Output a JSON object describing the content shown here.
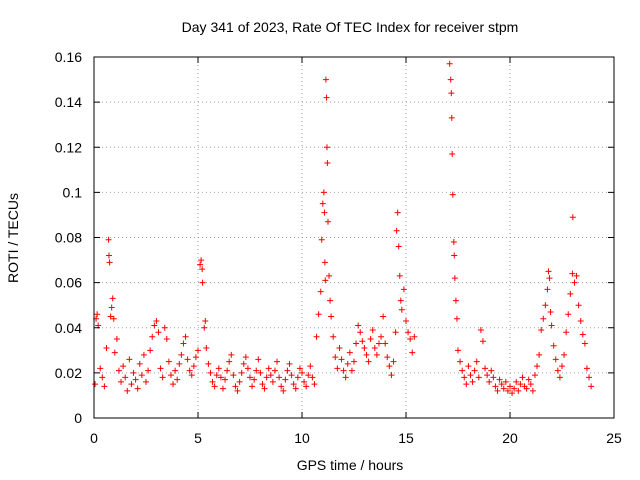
{
  "chart_data": {
    "type": "scatter",
    "title": "Day 341 of 2023, Rate Of TEC Index for receiver stpm",
    "xlabel": "GPS time / hours",
    "ylabel": "ROTI / TECUs",
    "xlim": [
      0,
      25
    ],
    "ylim": [
      0,
      0.16
    ],
    "x_ticks": [
      0,
      5,
      10,
      15,
      20,
      25
    ],
    "x_tick_labels": [
      "0",
      "5",
      "10",
      "15",
      "20",
      "25"
    ],
    "y_ticks": [
      0,
      0.02,
      0.04,
      0.06,
      0.08,
      0.1,
      0.12,
      0.14,
      0.16
    ],
    "y_tick_labels": [
      "0",
      "0.02",
      "0.04",
      "0.06",
      "0.08",
      "0.1",
      "0.12",
      "0.14",
      "0.16"
    ],
    "grid": true,
    "marker": "+",
    "color": "#ff0000",
    "series": [
      {
        "name": "ROTI",
        "points": [
          [
            0.05,
            0.015
          ],
          [
            0.1,
            0.044
          ],
          [
            0.15,
            0.046
          ],
          [
            0.2,
            0.041
          ],
          [
            0.3,
            0.022
          ],
          [
            0.4,
            0.018
          ],
          [
            0.5,
            0.014
          ],
          [
            0.6,
            0.031
          ],
          [
            0.7,
            0.079
          ],
          [
            0.72,
            0.072
          ],
          [
            0.75,
            0.069
          ],
          [
            0.8,
            0.045
          ],
          [
            0.85,
            0.049
          ],
          [
            0.9,
            0.053
          ],
          [
            0.95,
            0.044
          ],
          [
            1.0,
            0.029
          ],
          [
            1.1,
            0.035
          ],
          [
            1.2,
            0.021
          ],
          [
            1.3,
            0.016
          ],
          [
            1.4,
            0.023
          ],
          [
            1.5,
            0.018
          ],
          [
            1.6,
            0.012
          ],
          [
            1.7,
            0.026
          ],
          [
            1.8,
            0.015
          ],
          [
            1.9,
            0.02
          ],
          [
            2.0,
            0.017
          ],
          [
            2.1,
            0.013
          ],
          [
            2.2,
            0.024
          ],
          [
            2.3,
            0.019
          ],
          [
            2.4,
            0.028
          ],
          [
            2.5,
            0.016
          ],
          [
            2.6,
            0.021
          ],
          [
            2.7,
            0.03
          ],
          [
            2.8,
            0.036
          ],
          [
            2.9,
            0.041
          ],
          [
            3.0,
            0.043
          ],
          [
            3.1,
            0.038
          ],
          [
            3.2,
            0.022
          ],
          [
            3.3,
            0.018
          ],
          [
            3.4,
            0.04
          ],
          [
            3.5,
            0.035
          ],
          [
            3.6,
            0.025
          ],
          [
            3.7,
            0.019
          ],
          [
            3.8,
            0.015
          ],
          [
            3.9,
            0.021
          ],
          [
            4.0,
            0.017
          ],
          [
            4.1,
            0.024
          ],
          [
            4.2,
            0.028
          ],
          [
            4.3,
            0.033
          ],
          [
            4.4,
            0.036
          ],
          [
            4.5,
            0.026
          ],
          [
            4.6,
            0.021
          ],
          [
            4.7,
            0.019
          ],
          [
            4.8,
            0.023
          ],
          [
            4.9,
            0.027
          ],
          [
            5.0,
            0.03
          ],
          [
            5.1,
            0.068
          ],
          [
            5.15,
            0.07
          ],
          [
            5.2,
            0.066
          ],
          [
            5.22,
            0.06
          ],
          [
            5.3,
            0.04
          ],
          [
            5.35,
            0.043
          ],
          [
            5.4,
            0.031
          ],
          [
            5.5,
            0.024
          ],
          [
            5.6,
            0.02
          ],
          [
            5.7,
            0.016
          ],
          [
            5.8,
            0.014
          ],
          [
            5.9,
            0.019
          ],
          [
            6.0,
            0.022
          ],
          [
            6.1,
            0.018
          ],
          [
            6.2,
            0.013
          ],
          [
            6.3,
            0.017
          ],
          [
            6.4,
            0.021
          ],
          [
            6.5,
            0.025
          ],
          [
            6.6,
            0.028
          ],
          [
            6.7,
            0.019
          ],
          [
            6.8,
            0.014
          ],
          [
            6.9,
            0.012
          ],
          [
            7.0,
            0.016
          ],
          [
            7.1,
            0.02
          ],
          [
            7.2,
            0.024
          ],
          [
            7.3,
            0.027
          ],
          [
            7.4,
            0.022
          ],
          [
            7.5,
            0.018
          ],
          [
            7.6,
            0.014
          ],
          [
            7.7,
            0.017
          ],
          [
            7.8,
            0.021
          ],
          [
            7.9,
            0.026
          ],
          [
            8.0,
            0.02
          ],
          [
            8.1,
            0.015
          ],
          [
            8.2,
            0.013
          ],
          [
            8.3,
            0.018
          ],
          [
            8.4,
            0.022
          ],
          [
            8.5,
            0.019
          ],
          [
            8.6,
            0.016
          ],
          [
            8.7,
            0.021
          ],
          [
            8.8,
            0.025
          ],
          [
            8.9,
            0.018
          ],
          [
            9.0,
            0.014
          ],
          [
            9.1,
            0.012
          ],
          [
            9.2,
            0.017
          ],
          [
            9.3,
            0.021
          ],
          [
            9.4,
            0.024
          ],
          [
            9.5,
            0.019
          ],
          [
            9.6,
            0.015
          ],
          [
            9.7,
            0.013
          ],
          [
            9.8,
            0.018
          ],
          [
            9.9,
            0.022
          ],
          [
            10.0,
            0.02
          ],
          [
            10.1,
            0.016
          ],
          [
            10.2,
            0.014
          ],
          [
            10.3,
            0.019
          ],
          [
            10.4,
            0.023
          ],
          [
            10.5,
            0.018
          ],
          [
            10.6,
            0.015
          ],
          [
            10.7,
            0.036
          ],
          [
            10.8,
            0.046
          ],
          [
            10.9,
            0.056
          ],
          [
            10.95,
            0.079
          ],
          [
            11.0,
            0.095
          ],
          [
            11.05,
            0.1
          ],
          [
            11.08,
            0.091
          ],
          [
            11.1,
            0.069
          ],
          [
            11.12,
            0.061
          ],
          [
            11.15,
            0.15
          ],
          [
            11.18,
            0.142
          ],
          [
            11.2,
            0.12
          ],
          [
            11.22,
            0.113
          ],
          [
            11.25,
            0.087
          ],
          [
            11.3,
            0.063
          ],
          [
            11.35,
            0.052
          ],
          [
            11.4,
            0.045
          ],
          [
            11.5,
            0.036
          ],
          [
            11.6,
            0.027
          ],
          [
            11.7,
            0.022
          ],
          [
            11.8,
            0.031
          ],
          [
            11.9,
            0.026
          ],
          [
            12.0,
            0.021
          ],
          [
            12.1,
            0.018
          ],
          [
            12.2,
            0.024
          ],
          [
            12.3,
            0.029
          ],
          [
            12.4,
            0.021
          ],
          [
            12.5,
            0.025
          ],
          [
            12.6,
            0.033
          ],
          [
            12.7,
            0.041
          ],
          [
            12.8,
            0.038
          ],
          [
            12.9,
            0.034
          ],
          [
            13.0,
            0.031
          ],
          [
            13.1,
            0.028
          ],
          [
            13.2,
            0.025
          ],
          [
            13.3,
            0.035
          ],
          [
            13.4,
            0.039
          ],
          [
            13.5,
            0.031
          ],
          [
            13.6,
            0.028
          ],
          [
            13.7,
            0.033
          ],
          [
            13.8,
            0.036
          ],
          [
            13.9,
            0.045
          ],
          [
            14.0,
            0.033
          ],
          [
            14.1,
            0.027
          ],
          [
            14.2,
            0.023
          ],
          [
            14.3,
            0.019
          ],
          [
            14.4,
            0.025
          ],
          [
            14.5,
            0.038
          ],
          [
            14.55,
            0.083
          ],
          [
            14.6,
            0.091
          ],
          [
            14.65,
            0.076
          ],
          [
            14.7,
            0.063
          ],
          [
            14.75,
            0.052
          ],
          [
            14.8,
            0.048
          ],
          [
            14.9,
            0.057
          ],
          [
            15.0,
            0.043
          ],
          [
            15.1,
            0.038
          ],
          [
            15.2,
            0.035
          ],
          [
            15.3,
            0.029
          ],
          [
            15.4,
            0.036
          ],
          [
            17.1,
            0.157
          ],
          [
            17.15,
            0.15
          ],
          [
            17.18,
            0.144
          ],
          [
            17.2,
            0.133
          ],
          [
            17.22,
            0.117
          ],
          [
            17.25,
            0.099
          ],
          [
            17.3,
            0.078
          ],
          [
            17.32,
            0.072
          ],
          [
            17.35,
            0.062
          ],
          [
            17.4,
            0.052
          ],
          [
            17.45,
            0.044
          ],
          [
            17.5,
            0.03
          ],
          [
            17.6,
            0.025
          ],
          [
            17.7,
            0.021
          ],
          [
            17.8,
            0.018
          ],
          [
            17.9,
            0.015
          ],
          [
            18.0,
            0.023
          ],
          [
            18.1,
            0.019
          ],
          [
            18.2,
            0.016
          ],
          [
            18.3,
            0.021
          ],
          [
            18.4,
            0.025
          ],
          [
            18.5,
            0.018
          ],
          [
            18.6,
            0.039
          ],
          [
            18.7,
            0.034
          ],
          [
            18.8,
            0.022
          ],
          [
            18.9,
            0.019
          ],
          [
            19.0,
            0.016
          ],
          [
            19.1,
            0.021
          ],
          [
            19.2,
            0.018
          ],
          [
            19.3,
            0.014
          ],
          [
            19.4,
            0.012
          ],
          [
            19.5,
            0.017
          ],
          [
            19.6,
            0.015
          ],
          [
            19.7,
            0.013
          ],
          [
            19.8,
            0.016
          ],
          [
            19.9,
            0.012
          ],
          [
            20.0,
            0.014
          ],
          [
            20.1,
            0.011
          ],
          [
            20.2,
            0.013
          ],
          [
            20.3,
            0.016
          ],
          [
            20.4,
            0.012
          ],
          [
            20.5,
            0.015
          ],
          [
            20.6,
            0.018
          ],
          [
            20.7,
            0.014
          ],
          [
            20.8,
            0.013
          ],
          [
            20.9,
            0.017
          ],
          [
            21.0,
            0.015
          ],
          [
            21.1,
            0.012
          ],
          [
            21.2,
            0.019
          ],
          [
            21.3,
            0.023
          ],
          [
            21.4,
            0.028
          ],
          [
            21.5,
            0.039
          ],
          [
            21.6,
            0.044
          ],
          [
            21.7,
            0.05
          ],
          [
            21.8,
            0.057
          ],
          [
            21.85,
            0.065
          ],
          [
            21.9,
            0.062
          ],
          [
            21.95,
            0.047
          ],
          [
            22.0,
            0.041
          ],
          [
            22.1,
            0.032
          ],
          [
            22.2,
            0.026
          ],
          [
            22.3,
            0.021
          ],
          [
            22.4,
            0.018
          ],
          [
            22.5,
            0.023
          ],
          [
            22.6,
            0.028
          ],
          [
            22.7,
            0.038
          ],
          [
            22.8,
            0.046
          ],
          [
            22.9,
            0.055
          ],
          [
            23.0,
            0.064
          ],
          [
            23.02,
            0.089
          ],
          [
            23.1,
            0.06
          ],
          [
            23.2,
            0.063
          ],
          [
            23.3,
            0.05
          ],
          [
            23.4,
            0.043
          ],
          [
            23.5,
            0.037
          ],
          [
            23.6,
            0.033
          ],
          [
            23.7,
            0.022
          ],
          [
            23.8,
            0.018
          ],
          [
            23.9,
            0.014
          ]
        ]
      }
    ]
  }
}
